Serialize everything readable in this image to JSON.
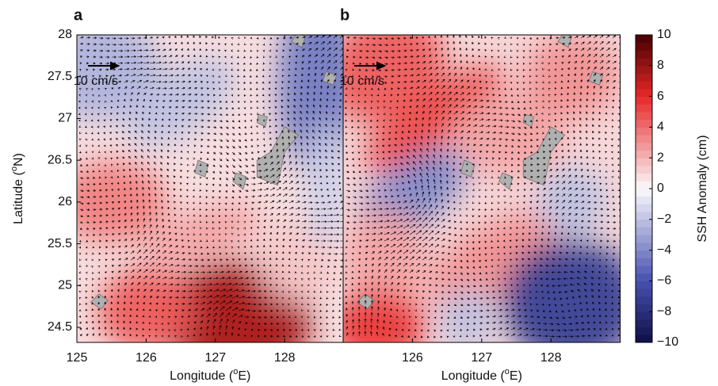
{
  "chart_data": {
    "type": "quiver",
    "ylabel": [
      "Latitude (",
      "o",
      "N)"
    ],
    "ylim": [
      24.32,
      28
    ],
    "yticks": [
      24.5,
      25,
      25.5,
      26,
      26.5,
      27,
      27.5,
      28
    ],
    "panels": [
      {
        "label": "a",
        "xlim": [
          125,
          128.85
        ],
        "xticks": [
          125,
          126,
          127,
          128
        ],
        "scale_label": "10 cm/s",
        "xlabel": [
          "Longitude (",
          "o",
          "E)"
        ]
      },
      {
        "label": "b",
        "xlim": [
          125,
          129
        ],
        "xticks": [
          126,
          127,
          128
        ],
        "scale_label": "10 cm/s",
        "xlabel": [
          "Longitude (",
          "o",
          "E)"
        ]
      }
    ],
    "colorbar": {
      "label": "SSH Anomaly (cm)",
      "clim": [
        -10,
        10
      ],
      "ticks": [
        {
          "value": -10,
          "label": "−10"
        },
        {
          "value": -8,
          "label": "−8"
        },
        {
          "value": -6,
          "label": "−6"
        },
        {
          "value": -4,
          "label": "−4"
        },
        {
          "value": -2,
          "label": "−2"
        },
        0,
        2,
        4,
        6,
        8,
        10
      ]
    }
  }
}
